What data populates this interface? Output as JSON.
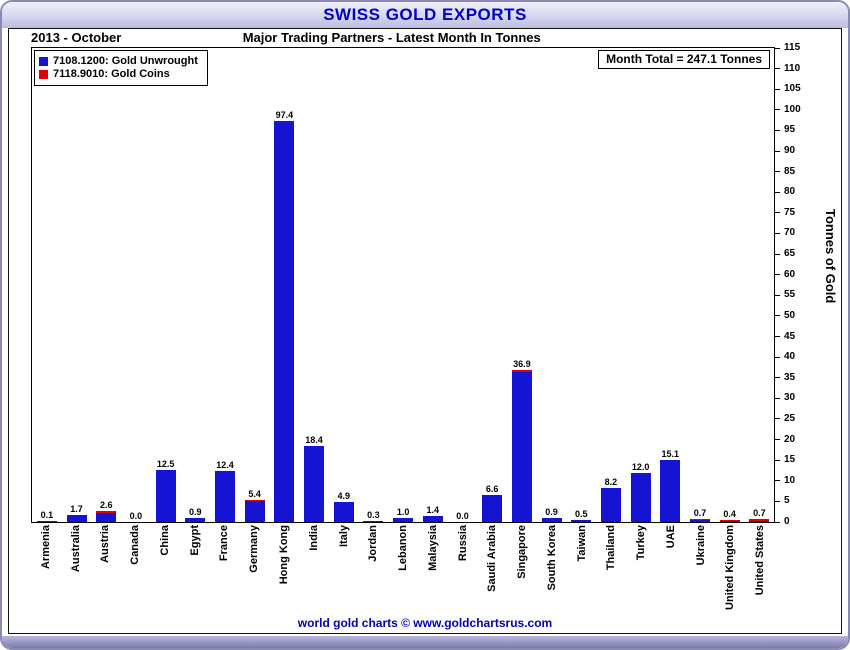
{
  "window": {
    "title": "SWISS GOLD EXPORTS"
  },
  "header": {
    "period": "2013 - October",
    "subtitle": "Major Trading Partners - Latest Month In Tonnes",
    "month_total": "Month Total = 247.1 Tonnes"
  },
  "footer": {
    "text": "world gold charts © www.goldchartsrus.com"
  },
  "colors": {
    "title_text": "#0000cc",
    "footer_text": "#0000bb",
    "unwrought_bar": "#1414d2",
    "coins_bar": "#e00000"
  },
  "chart_data": {
    "type": "bar",
    "stacked": true,
    "title": "SWISS GOLD EXPORTS",
    "period": "2013 - October",
    "subtitle": "Major Trading Partners - Latest Month In Tonnes",
    "month_total_label": "Month Total = 247.1 Tonnes",
    "ylabel": "Tonnes of Gold",
    "ylim": [
      0,
      115
    ],
    "ytick_step": 5,
    "grid": false,
    "legend_position": "top-left",
    "bar_value_labels": true,
    "categories": [
      "Armenia",
      "Australia",
      "Austria",
      "Canada",
      "China",
      "Egypt",
      "France",
      "Germany",
      "Hong Kong",
      "India",
      "Italy",
      "Jordan",
      "Lebanon",
      "Malaysia",
      "Russia",
      "Saudi Arabia",
      "Singapore",
      "South Korea",
      "Taiwan",
      "Thailand",
      "Turkey",
      "UAE",
      "Ukraine",
      "United Kingdom",
      "United States"
    ],
    "totals": [
      0.1,
      1.7,
      2.6,
      0.0,
      12.5,
      0.9,
      12.4,
      5.4,
      97.4,
      18.4,
      4.9,
      0.3,
      1.0,
      1.4,
      0.0,
      6.6,
      36.9,
      0.9,
      0.5,
      8.2,
      12.0,
      15.1,
      0.7,
      0.4,
      0.7
    ],
    "series": [
      {
        "name": "7108.1200: Gold Unwrought",
        "color": "#1414d2",
        "values": [
          0.1,
          1.7,
          2.2,
          0.0,
          12.5,
          0.9,
          12.4,
          5.1,
          97.4,
          18.4,
          4.9,
          0.3,
          1.0,
          1.4,
          0.0,
          6.6,
          36.5,
          0.9,
          0.5,
          8.2,
          12.0,
          15.1,
          0.4,
          0.2,
          0.3
        ]
      },
      {
        "name": "7118.9010: Gold Coins",
        "color": "#e00000",
        "values": [
          0.0,
          0.0,
          0.4,
          0.0,
          0.0,
          0.0,
          0.0,
          0.3,
          0.0,
          0.0,
          0.0,
          0.0,
          0.0,
          0.0,
          0.0,
          0.0,
          0.4,
          0.0,
          0.0,
          0.0,
          0.0,
          0.0,
          0.3,
          0.2,
          0.4
        ]
      }
    ]
  }
}
